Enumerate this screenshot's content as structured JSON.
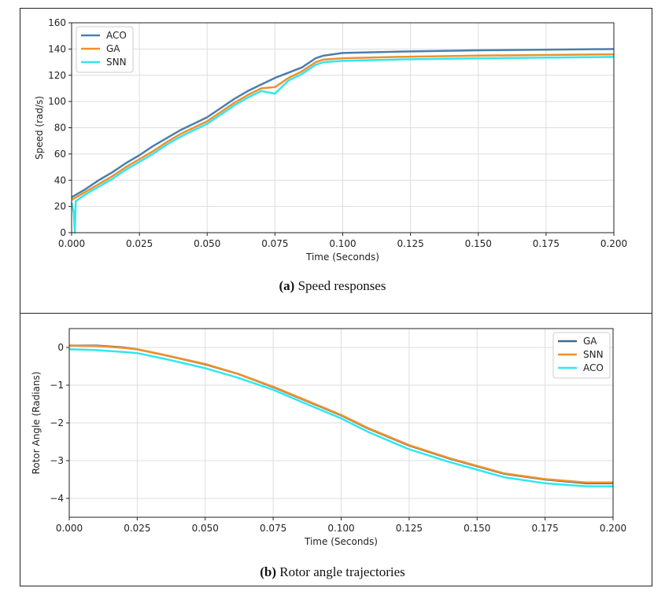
{
  "chart_data": [
    {
      "type": "line",
      "caption_label": "(a)",
      "caption_text": "Speed responses",
      "xlabel": "Time (Seconds)",
      "ylabel": "Speed (rad/s)",
      "xlim": [
        0,
        0.2
      ],
      "ylim": [
        0,
        160
      ],
      "xticks": [
        "0.000",
        "0.025",
        "0.050",
        "0.075",
        "0.100",
        "0.125",
        "0.150",
        "0.175",
        "0.200"
      ],
      "yticks": [
        "0",
        "20",
        "40",
        "60",
        "80",
        "100",
        "120",
        "140",
        "160"
      ],
      "grid": true,
      "legend": "top-left",
      "series": [
        {
          "name": "ACO",
          "color": "#4a7fad",
          "x": [
            0,
            0.005,
            0.01,
            0.015,
            0.02,
            0.025,
            0.03,
            0.035,
            0.04,
            0.045,
            0.05,
            0.055,
            0.06,
            0.065,
            0.07,
            0.075,
            0.08,
            0.085,
            0.09,
            0.093,
            0.1,
            0.12,
            0.15,
            0.2
          ],
          "y": [
            27,
            33,
            40,
            46,
            53,
            59,
            66,
            72,
            78,
            83,
            88,
            95,
            102,
            108,
            113,
            118,
            122,
            126,
            133,
            135,
            137,
            138,
            139,
            140
          ]
        },
        {
          "name": "GA",
          "color": "#f0902a",
          "x": [
            0,
            0.005,
            0.01,
            0.015,
            0.02,
            0.025,
            0.03,
            0.035,
            0.04,
            0.045,
            0.05,
            0.055,
            0.06,
            0.065,
            0.07,
            0.075,
            0.08,
            0.085,
            0.09,
            0.093,
            0.1,
            0.12,
            0.15,
            0.2
          ],
          "y": [
            25,
            31,
            37,
            43,
            50,
            56,
            62,
            69,
            75,
            80,
            85,
            92,
            99,
            105,
            110,
            111,
            118,
            123,
            130,
            132,
            133,
            134,
            135,
            136
          ]
        },
        {
          "name": "SNN",
          "color": "#2ee8ee",
          "x": [
            0,
            0.0008,
            0.0012,
            0.0015,
            0.005,
            0.01,
            0.015,
            0.02,
            0.025,
            0.03,
            0.035,
            0.04,
            0.045,
            0.05,
            0.055,
            0.06,
            0.065,
            0.07,
            0.075,
            0.08,
            0.085,
            0.09,
            0.093,
            0.1,
            0.12,
            0.15,
            0.2
          ],
          "y": [
            23,
            15,
            0,
            24,
            29,
            35,
            41,
            48,
            54,
            60,
            67,
            73,
            78,
            83,
            90,
            97,
            103,
            108,
            106,
            116,
            121,
            128,
            130,
            131,
            132,
            133,
            134
          ]
        }
      ]
    },
    {
      "type": "line",
      "caption_label": "(b)",
      "caption_text": "Rotor angle trajectories",
      "xlabel": "Time (Seconds)",
      "ylabel": "Rotor Angle (Radians)",
      "xlim": [
        0,
        0.2
      ],
      "ylim": [
        -4.5,
        0.5
      ],
      "xticks": [
        "0.000",
        "0.025",
        "0.050",
        "0.075",
        "0.100",
        "0.125",
        "0.150",
        "0.175",
        "0.200"
      ],
      "yticks": [
        "0",
        "−1",
        "−2",
        "−3",
        "−4"
      ],
      "grid": true,
      "legend": "top-right",
      "series": [
        {
          "name": "GA",
          "color": "#3f6a8e",
          "x": [
            0,
            0.01,
            0.02,
            0.025,
            0.035,
            0.05,
            0.062,
            0.075,
            0.085,
            0.1,
            0.11,
            0.125,
            0.14,
            0.15,
            0.16,
            0.175,
            0.19,
            0.2
          ],
          "y": [
            0.05,
            0.05,
            0,
            -0.05,
            -0.2,
            -0.45,
            -0.7,
            -1.05,
            -1.35,
            -1.8,
            -2.15,
            -2.6,
            -2.95,
            -3.15,
            -3.35,
            -3.5,
            -3.6,
            -3.6
          ]
        },
        {
          "name": "SNN",
          "color": "#f0902a",
          "x": [
            0,
            0.01,
            0.02,
            0.025,
            0.035,
            0.05,
            0.062,
            0.075,
            0.085,
            0.1,
            0.11,
            0.125,
            0.14,
            0.15,
            0.16,
            0.175,
            0.19,
            0.2
          ],
          "y": [
            0.05,
            0.04,
            -0.01,
            -0.05,
            -0.2,
            -0.44,
            -0.7,
            -1.04,
            -1.34,
            -1.79,
            -2.14,
            -2.59,
            -2.94,
            -3.14,
            -3.34,
            -3.49,
            -3.58,
            -3.58
          ]
        },
        {
          "name": "ACO",
          "color": "#2ee8ee",
          "x": [
            0,
            0.01,
            0.02,
            0.025,
            0.035,
            0.05,
            0.062,
            0.075,
            0.085,
            0.1,
            0.11,
            0.125,
            0.14,
            0.15,
            0.16,
            0.175,
            0.19,
            0.2
          ],
          "y": [
            -0.05,
            -0.07,
            -0.12,
            -0.15,
            -0.3,
            -0.55,
            -0.8,
            -1.12,
            -1.43,
            -1.88,
            -2.24,
            -2.7,
            -3.04,
            -3.24,
            -3.44,
            -3.6,
            -3.68,
            -3.68
          ]
        }
      ]
    }
  ]
}
